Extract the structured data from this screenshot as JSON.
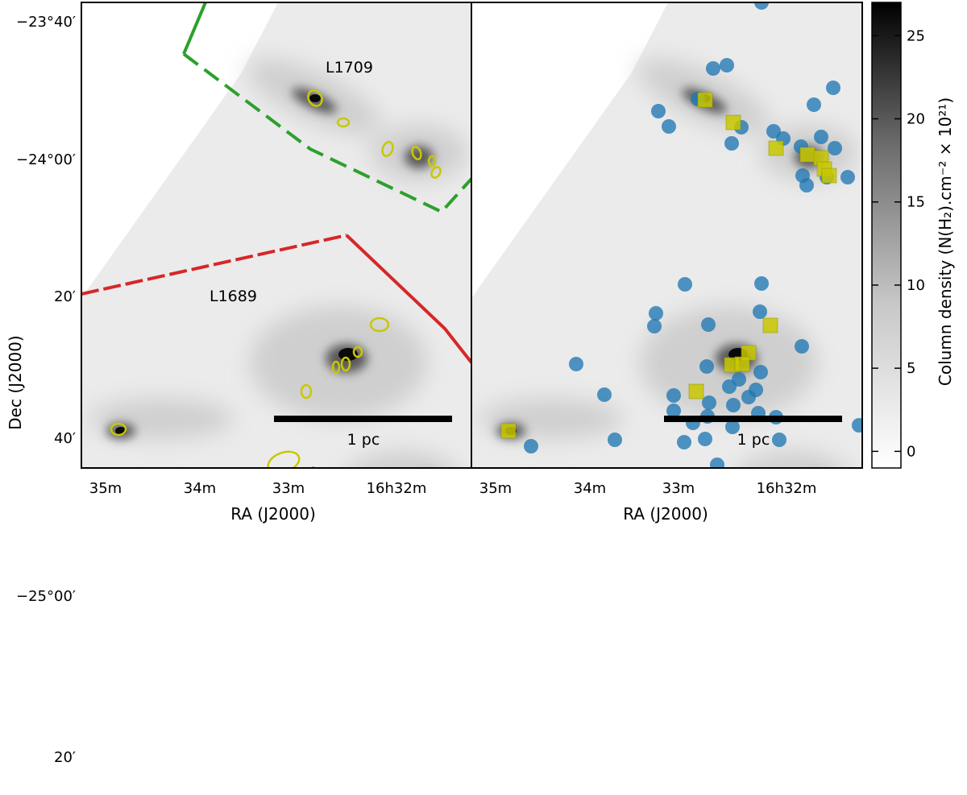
{
  "chart_data": [
    {
      "type": "image-map",
      "panel": "left",
      "title": "",
      "xlabel": "RA (J2000)",
      "ylabel": "Dec (J2000)",
      "x_tick_labels": [
        "35m",
        "34m",
        "33m",
        "16h32m"
      ],
      "y_tick_labels": [
        "−23°40′",
        "−24°00′",
        "20′",
        "40′",
        "−25°00′",
        "20′"
      ],
      "region_labels": [
        "L1709",
        "L1689"
      ],
      "scalebar_label": "1 pc",
      "markers": "yellow ellipses (cores)"
    },
    {
      "type": "image-map",
      "panel": "right",
      "title": "",
      "xlabel": "RA (J2000)",
      "ylabel": "",
      "x_tick_labels": [
        "35m",
        "34m",
        "33m",
        "16h32m"
      ],
      "scalebar_label": "1 pc",
      "markers": "blue circles and yellow squares"
    },
    {
      "type": "colorbar",
      "label": "Column density (N(H₂).cm⁻² × 10²¹)",
      "ticks": [
        0,
        5,
        10,
        15,
        20,
        25
      ],
      "range": [
        -1,
        27
      ]
    }
  ],
  "figure": {
    "colors": {
      "green": "#2ca02c",
      "red": "#d62728",
      "blue": "#1f77b4",
      "yellow": "#c8c800"
    }
  }
}
